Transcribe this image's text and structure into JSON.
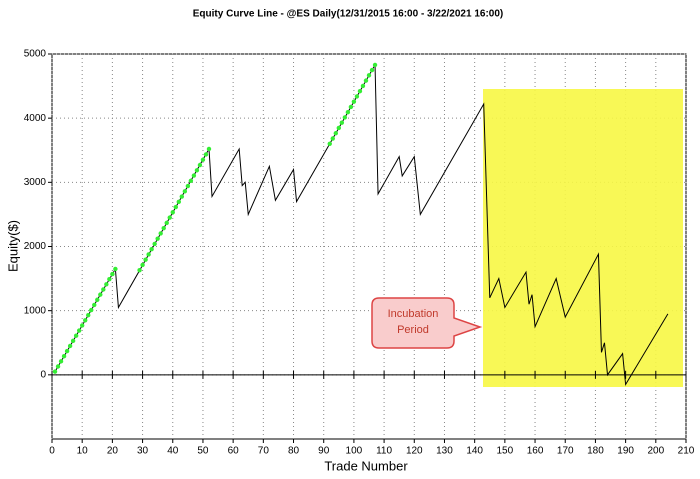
{
  "chart_data": {
    "type": "line",
    "title": "Equity Curve Line - @ES Daily(12/31/2015 16:00 - 3/22/2021 16:00)",
    "x_label": "Trade Number",
    "y_label": "Equity($)",
    "xlim": [
      0,
      210
    ],
    "xticks": [
      0,
      10,
      20,
      30,
      40,
      50,
      60,
      70,
      80,
      90,
      100,
      110,
      120,
      130,
      140,
      150,
      160,
      170,
      180,
      190,
      200,
      210
    ],
    "ylim": [
      -1000,
      5000
    ],
    "yticks": [
      0,
      1000,
      2000,
      3000,
      4000,
      5000
    ],
    "grid": true,
    "annotation": [
      "Incubation",
      "Period"
    ],
    "series": [
      {
        "color": "#000000",
        "x": [
          1,
          21,
          22,
          52,
          53,
          62,
          63,
          64,
          65,
          72,
          74,
          80,
          81,
          107,
          108,
          115,
          116,
          120,
          122,
          143,
          145,
          148,
          150,
          157,
          158,
          159,
          160,
          167,
          170,
          181,
          182,
          183,
          184,
          189,
          190,
          204
        ],
        "values": [
          50,
          1650,
          1050,
          3520,
          2780,
          3520,
          2950,
          3000,
          2500,
          3250,
          2720,
          3200,
          2700,
          4830,
          2820,
          3400,
          3100,
          3400,
          2500,
          4220,
          1200,
          1500,
          1050,
          1600,
          1100,
          1250,
          750,
          1500,
          900,
          1880,
          350,
          500,
          0,
          330,
          -150,
          950
        ]
      },
      {
        "color": "#33ee33",
        "markers": true,
        "x": [
          1,
          2,
          3,
          4,
          5,
          6,
          7,
          8,
          9,
          10,
          11,
          12,
          13,
          14,
          15,
          16,
          17,
          18,
          19,
          20,
          21,
          29,
          30,
          31,
          32,
          33,
          34,
          35,
          36,
          37,
          38,
          39,
          40,
          41,
          42,
          43,
          44,
          45,
          46,
          47,
          48,
          49,
          50,
          51,
          52,
          92,
          93,
          94,
          95,
          96,
          97,
          98,
          99,
          100,
          101,
          102,
          103,
          104,
          105,
          106,
          107
        ],
        "values": [
          50,
          130,
          210,
          290,
          370,
          450,
          530,
          610,
          690,
          770,
          850,
          930,
          1010,
          1090,
          1170,
          1250,
          1330,
          1410,
          1490,
          1570,
          1650,
          1630,
          1712,
          1794,
          1876,
          1958,
          2040,
          2122,
          2204,
          2286,
          2368,
          2450,
          2532,
          2614,
          2696,
          2778,
          2860,
          2942,
          3024,
          3106,
          3188,
          3270,
          3352,
          3434,
          3520,
          3601,
          3683,
          3765,
          3847,
          3929,
          4011,
          4093,
          4175,
          4257,
          4339,
          4421,
          4503,
          4585,
          4667,
          4749,
          4830
        ]
      }
    ]
  }
}
